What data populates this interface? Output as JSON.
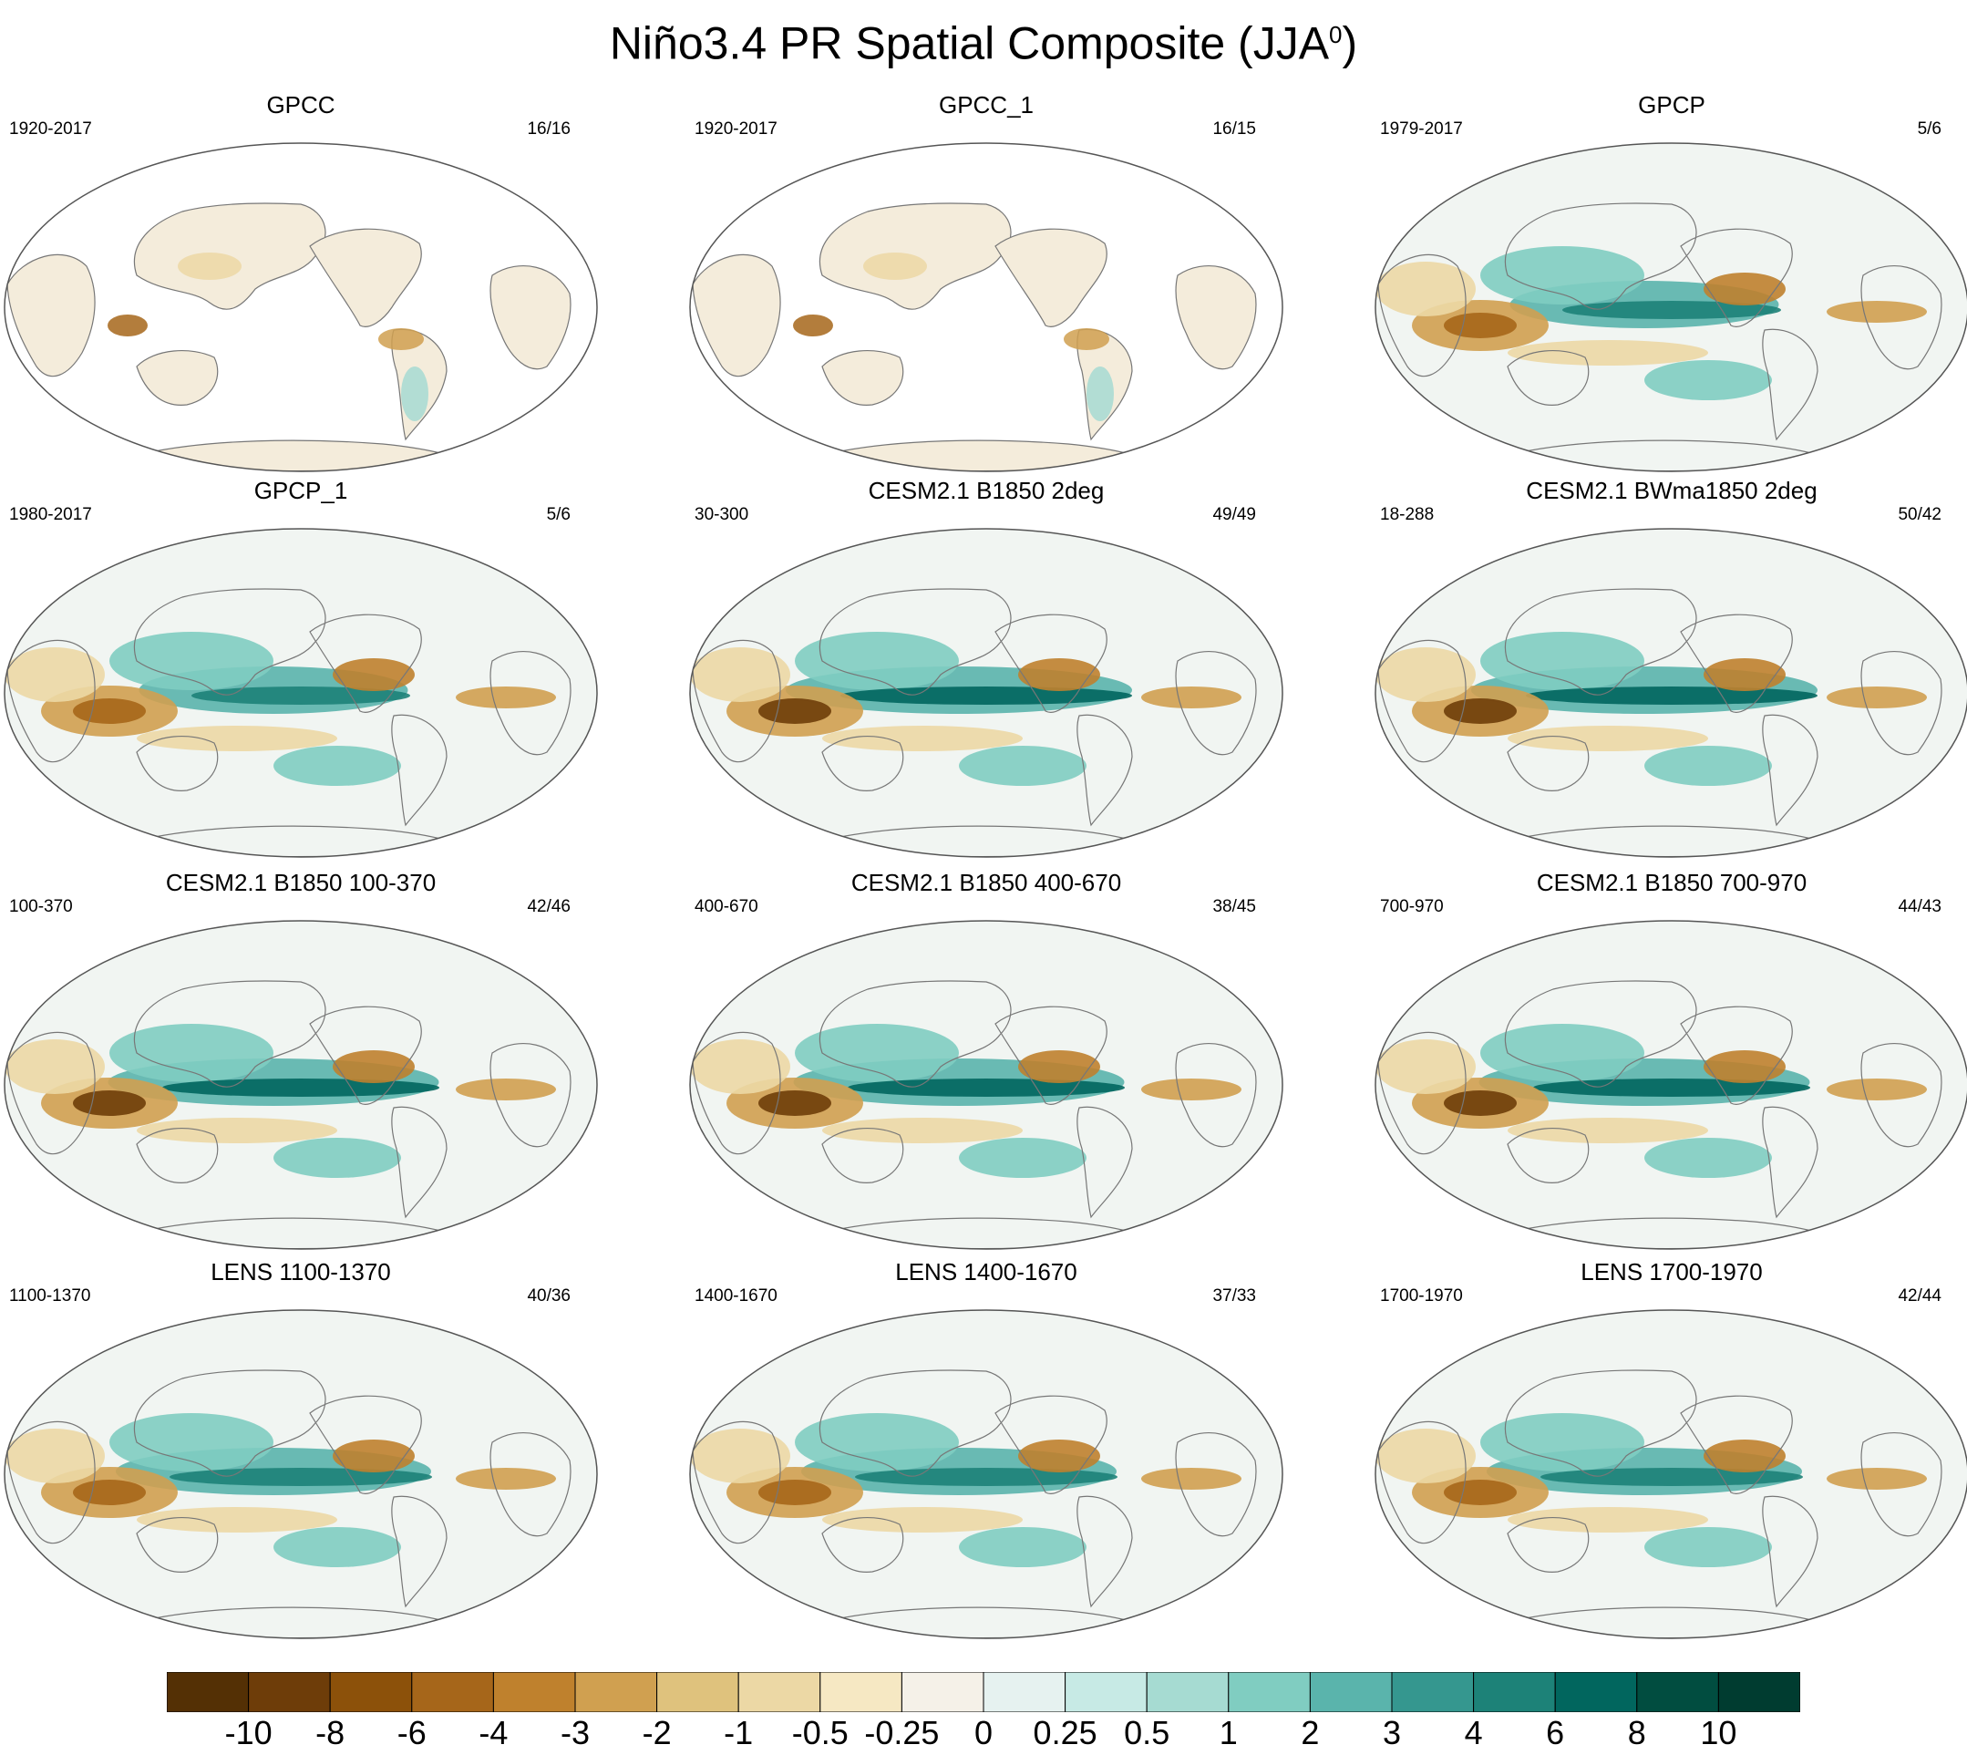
{
  "figure": {
    "title": "Niño3.4 PR Spatial Composite (JJA",
    "title_superscript": "0",
    "title_close": ")"
  },
  "panels": [
    {
      "title": "GPCC",
      "years": "1920-2017",
      "count": "16/16",
      "land_only": true,
      "strength": 0.35
    },
    {
      "title": "GPCC_1",
      "years": "1920-2017",
      "count": "16/15",
      "land_only": true,
      "strength": 0.35
    },
    {
      "title": "GPCP",
      "years": "1979-2017",
      "count": "5/6",
      "land_only": false,
      "strength": 0.75
    },
    {
      "title": "GPCP_1",
      "years": "1980-2017",
      "count": "5/6",
      "land_only": false,
      "strength": 0.75
    },
    {
      "title": "CESM2.1 B1850 2deg",
      "years": "30-300",
      "count": "49/49",
      "land_only": false,
      "strength": 1.0
    },
    {
      "title": "CESM2.1 BWma1850 2deg",
      "years": "18-288",
      "count": "50/42",
      "land_only": false,
      "strength": 1.0
    },
    {
      "title": "CESM2.1 B1850 100-370",
      "years": "100-370",
      "count": "42/46",
      "land_only": false,
      "strength": 0.95
    },
    {
      "title": "CESM2.1 B1850 400-670",
      "years": "400-670",
      "count": "38/45",
      "land_only": false,
      "strength": 0.95
    },
    {
      "title": "CESM2.1 B1850 700-970",
      "years": "700-970",
      "count": "44/43",
      "land_only": false,
      "strength": 0.95
    },
    {
      "title": "LENS 1100-1370",
      "years": "1100-1370",
      "count": "40/36",
      "land_only": false,
      "strength": 0.9
    },
    {
      "title": "LENS 1400-1670",
      "years": "1400-1670",
      "count": "37/33",
      "land_only": false,
      "strength": 0.9
    },
    {
      "title": "LENS 1700-1970",
      "years": "1700-1970",
      "count": "42/44",
      "land_only": false,
      "strength": 0.9
    }
  ],
  "colorbar": {
    "colors": [
      "#543005",
      "#6e3d09",
      "#8c510a",
      "#a6661a",
      "#bf812d",
      "#d0a050",
      "#dfc27d",
      "#ecd8a5",
      "#f6e8c3",
      "#f5f1e8",
      "#e6f2f0",
      "#c7eae5",
      "#a6dbd2",
      "#80cdc1",
      "#5ab4ac",
      "#35978f",
      "#1d8278",
      "#01665e",
      "#014d40",
      "#003c30"
    ],
    "labels": [
      "-10",
      "-8",
      "-6",
      "-4",
      "-3",
      "-2",
      "-1",
      "-0.5",
      "-0.25",
      "0",
      "0.25",
      "0.5",
      "1",
      "2",
      "3",
      "4",
      "6",
      "8",
      "10"
    ]
  },
  "chart_data": {
    "type": "heatmap",
    "title": "Niño3.4 PR Spatial Composite (JJA0)",
    "projection": "global map",
    "panels": [
      "GPCC",
      "GPCC_1",
      "GPCP",
      "GPCP_1",
      "CESM2.1 B1850 2deg",
      "CESM2.1 BWma1850 2deg",
      "CESM2.1 B1850 100-370",
      "CESM2.1 B1850 400-670",
      "CESM2.1 B1850 700-970",
      "LENS 1100-1370",
      "LENS 1400-1670",
      "LENS 1700-1970"
    ],
    "colorbar_levels": [
      -10,
      -8,
      -6,
      -4,
      -3,
      -2,
      -1,
      -0.5,
      -0.25,
      0,
      0.25,
      0.5,
      1,
      2,
      3,
      4,
      6,
      8,
      10
    ]
  }
}
